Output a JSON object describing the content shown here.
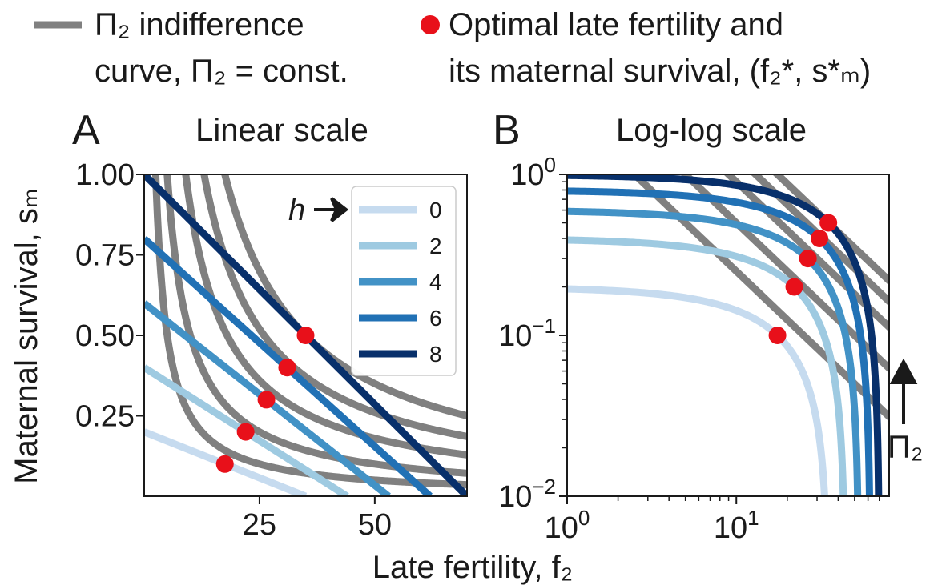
{
  "legend": {
    "indifference_line1": "Π₂ indifference",
    "indifference_line2": "curve, Π₂ = const.",
    "optimal_line1": "Optimal late fertility and",
    "optimal_line2": "its maternal survival, (f₂*, s*ₘ)",
    "colors": {
      "indifference": "#808080",
      "optimal": "#e8101a"
    }
  },
  "shared": {
    "ylabel": "Maternal survival, sₘ",
    "xlabel": "Late fertility, f₂",
    "h_label": "h",
    "pi_label": "Π₂"
  },
  "chart_data": [
    {
      "type": "line",
      "panel_letter": "A",
      "title": "Linear scale",
      "xlim": [
        0,
        70
      ],
      "ylim": [
        0,
        1
      ],
      "x_ticks": [
        25,
        50
      ],
      "x_tick_labels": [
        "25",
        "50"
      ],
      "y_ticks": [
        0.25,
        0.5,
        0.75,
        1.0
      ],
      "y_tick_labels": [
        "0.25",
        "0.50",
        "0.75",
        "1.00"
      ],
      "legend_title": "h",
      "legend_position": "top-right",
      "series": [
        {
          "name": "0",
          "color": "#c6dbef",
          "points": [
            [
              0,
              0.2
            ],
            [
              35,
              0.0
            ]
          ]
        },
        {
          "name": "2",
          "color": "#9ecae1",
          "points": [
            [
              0,
              0.4
            ],
            [
              44,
              0.0
            ]
          ]
        },
        {
          "name": "4",
          "color": "#4292c6",
          "points": [
            [
              0,
              0.6
            ],
            [
              53,
              0.0
            ]
          ]
        },
        {
          "name": "6",
          "color": "#2171b5",
          "points": [
            [
              0,
              0.8
            ],
            [
              62,
              0.0
            ]
          ]
        },
        {
          "name": "8",
          "color": "#08306b",
          "points": [
            [
              0,
              1.0
            ],
            [
              70,
              0.0
            ]
          ]
        }
      ],
      "indifference_constants": [
        2.5,
        5.0,
        9.0,
        13.0,
        17.5
      ],
      "optimal_points": [
        {
          "x": 17.5,
          "y": 0.1
        },
        {
          "x": 22.0,
          "y": 0.2
        },
        {
          "x": 26.5,
          "y": 0.3
        },
        {
          "x": 31.0,
          "y": 0.4
        },
        {
          "x": 35.0,
          "y": 0.5
        }
      ]
    },
    {
      "type": "line",
      "panel_letter": "B",
      "title": "Log-log scale",
      "xscale": "log",
      "yscale": "log",
      "xlim": [
        1,
        80
      ],
      "ylim": [
        0.01,
        1
      ],
      "x_ticks": [
        1,
        10
      ],
      "x_tick_labels": [
        {
          "base": "10",
          "exp": "0"
        },
        {
          "base": "10",
          "exp": "1"
        }
      ],
      "y_ticks": [
        1,
        0.1,
        0.01
      ],
      "y_tick_labels": [
        {
          "base": "10",
          "exp": "0"
        },
        {
          "base": "10",
          "exp": "−1"
        },
        {
          "base": "10",
          "exp": "−2"
        }
      ],
      "series": [
        {
          "name": "0",
          "color": "#c6dbef",
          "intercept": 0.2,
          "root": 35
        },
        {
          "name": "2",
          "color": "#9ecae1",
          "intercept": 0.4,
          "root": 44
        },
        {
          "name": "4",
          "color": "#4292c6",
          "intercept": 0.6,
          "root": 53
        },
        {
          "name": "6",
          "color": "#2171b5",
          "intercept": 0.8,
          "root": 62
        },
        {
          "name": "8",
          "color": "#08306b",
          "intercept": 1.0,
          "root": 70
        }
      ],
      "indifference_constants": [
        2.5,
        5.0,
        9.0,
        13.0,
        17.5
      ],
      "optimal_points": [
        {
          "x": 17.5,
          "y": 0.1
        },
        {
          "x": 22.0,
          "y": 0.2
        },
        {
          "x": 26.5,
          "y": 0.3
        },
        {
          "x": 31.0,
          "y": 0.4
        },
        {
          "x": 35.0,
          "y": 0.5
        }
      ]
    }
  ]
}
